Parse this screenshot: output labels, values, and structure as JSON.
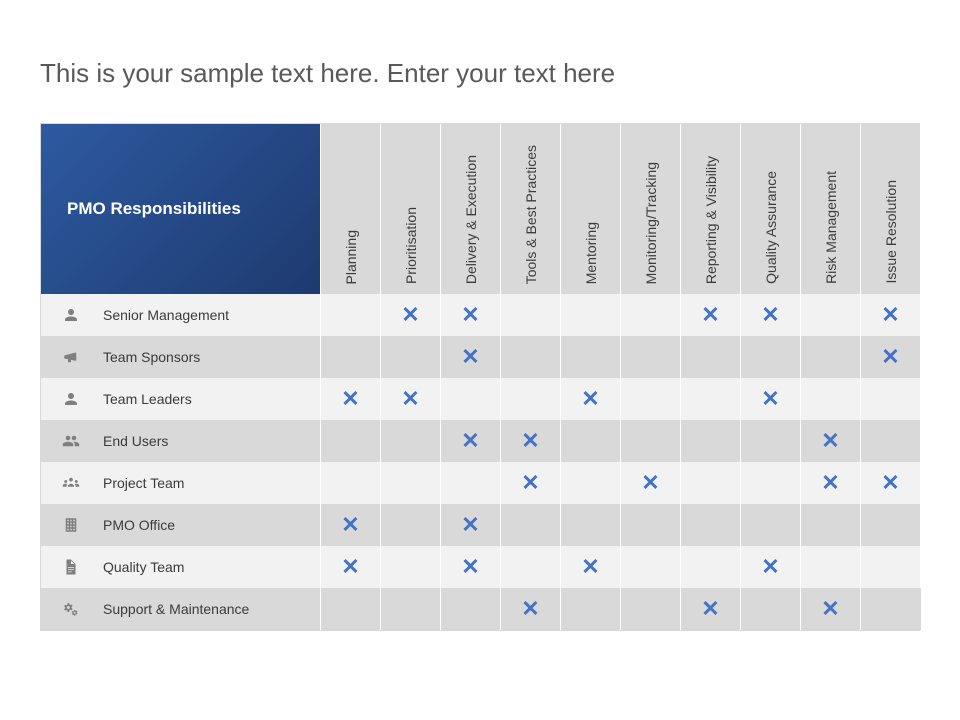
{
  "title": "This is your sample text here. Enter your text here",
  "matrix": {
    "header_title": "PMO Responsibilities",
    "header_bg_gradient": [
      "#2d5aa0",
      "#1e3a6f"
    ],
    "header_text_color": "#ffffff",
    "col_header_bg": "#d9d9d9",
    "row_odd_bg": "#f2f2f2",
    "row_even_bg": "#d9d9d9",
    "mark_color": "#4472c4",
    "mark_glyph": "✕",
    "columns": [
      "Planning",
      "Prioritisation",
      "Delivery & Execution",
      "Tools & Best Practices",
      "Mentoring",
      "Monitoring/Tracking",
      "Reporting & Visibility",
      "Quality Assurance",
      "Risk Management",
      "Issue Resolution"
    ],
    "rows": [
      {
        "icon": "person",
        "label": "Senior Management",
        "marks": [
          0,
          1,
          1,
          0,
          0,
          0,
          1,
          1,
          0,
          1
        ]
      },
      {
        "icon": "megaphone",
        "label": "Team Sponsors",
        "marks": [
          0,
          0,
          1,
          0,
          0,
          0,
          0,
          0,
          0,
          1
        ]
      },
      {
        "icon": "person",
        "label": "Team Leaders",
        "marks": [
          1,
          1,
          0,
          0,
          1,
          0,
          0,
          1,
          0,
          0
        ]
      },
      {
        "icon": "users",
        "label": "End Users",
        "marks": [
          0,
          0,
          1,
          1,
          0,
          0,
          0,
          0,
          1,
          0
        ]
      },
      {
        "icon": "team",
        "label": "Project Team",
        "marks": [
          0,
          0,
          0,
          1,
          0,
          1,
          0,
          0,
          1,
          1
        ]
      },
      {
        "icon": "building",
        "label": "PMO Office",
        "marks": [
          1,
          0,
          1,
          0,
          0,
          0,
          0,
          0,
          0,
          0
        ]
      },
      {
        "icon": "document",
        "label": "Quality Team",
        "marks": [
          1,
          0,
          1,
          0,
          1,
          0,
          0,
          1,
          0,
          0
        ]
      },
      {
        "icon": "gears",
        "label": "Support & Maintenance",
        "marks": [
          0,
          0,
          0,
          1,
          0,
          0,
          1,
          0,
          1,
          0
        ]
      }
    ]
  }
}
